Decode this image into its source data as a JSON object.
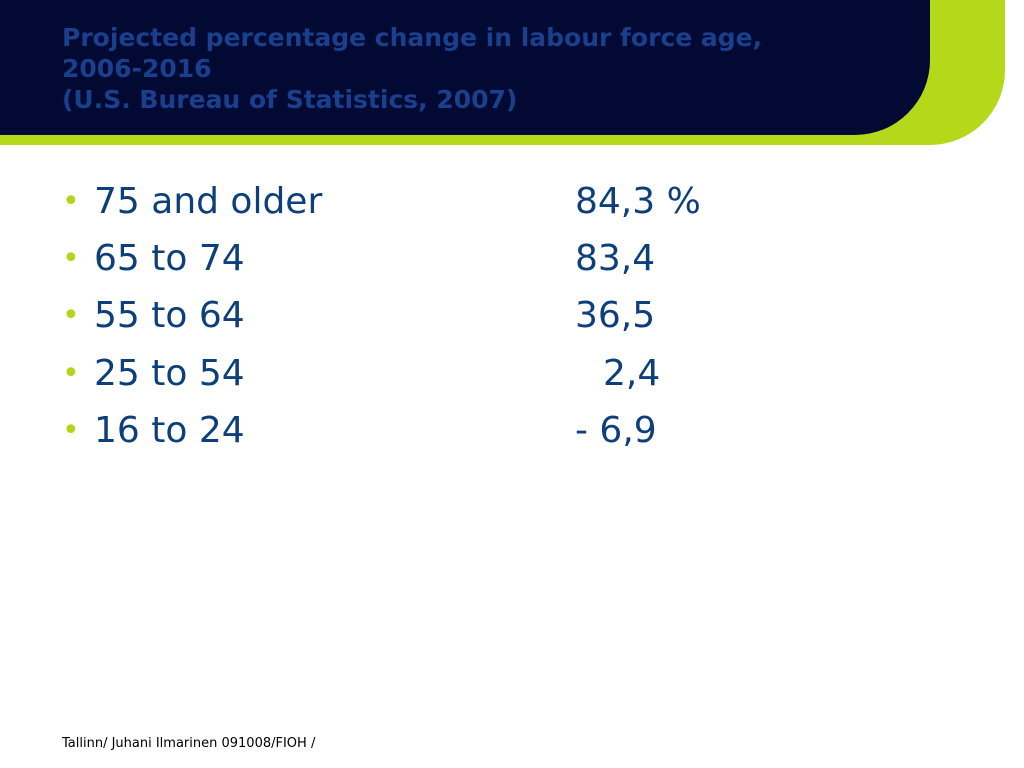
{
  "header": {
    "title_lines": [
      "Projected percentage change in labour force age,",
      "2006-2016",
      "(U.S. Bureau of Statistics, 2007)"
    ]
  },
  "items": [
    {
      "label": "75 and older",
      "value": "84,3 %"
    },
    {
      "label": "65 to 74",
      "value": "83,4"
    },
    {
      "label": "55 to 64",
      "value": "36,5"
    },
    {
      "label": "25 to 54",
      "value": "2,4"
    },
    {
      "label": "16 to 24",
      "value": "- 6,9"
    }
  ],
  "footer": {
    "text": "Tallinn/ Juhani Ilmarinen 091008/FIOH /"
  }
}
